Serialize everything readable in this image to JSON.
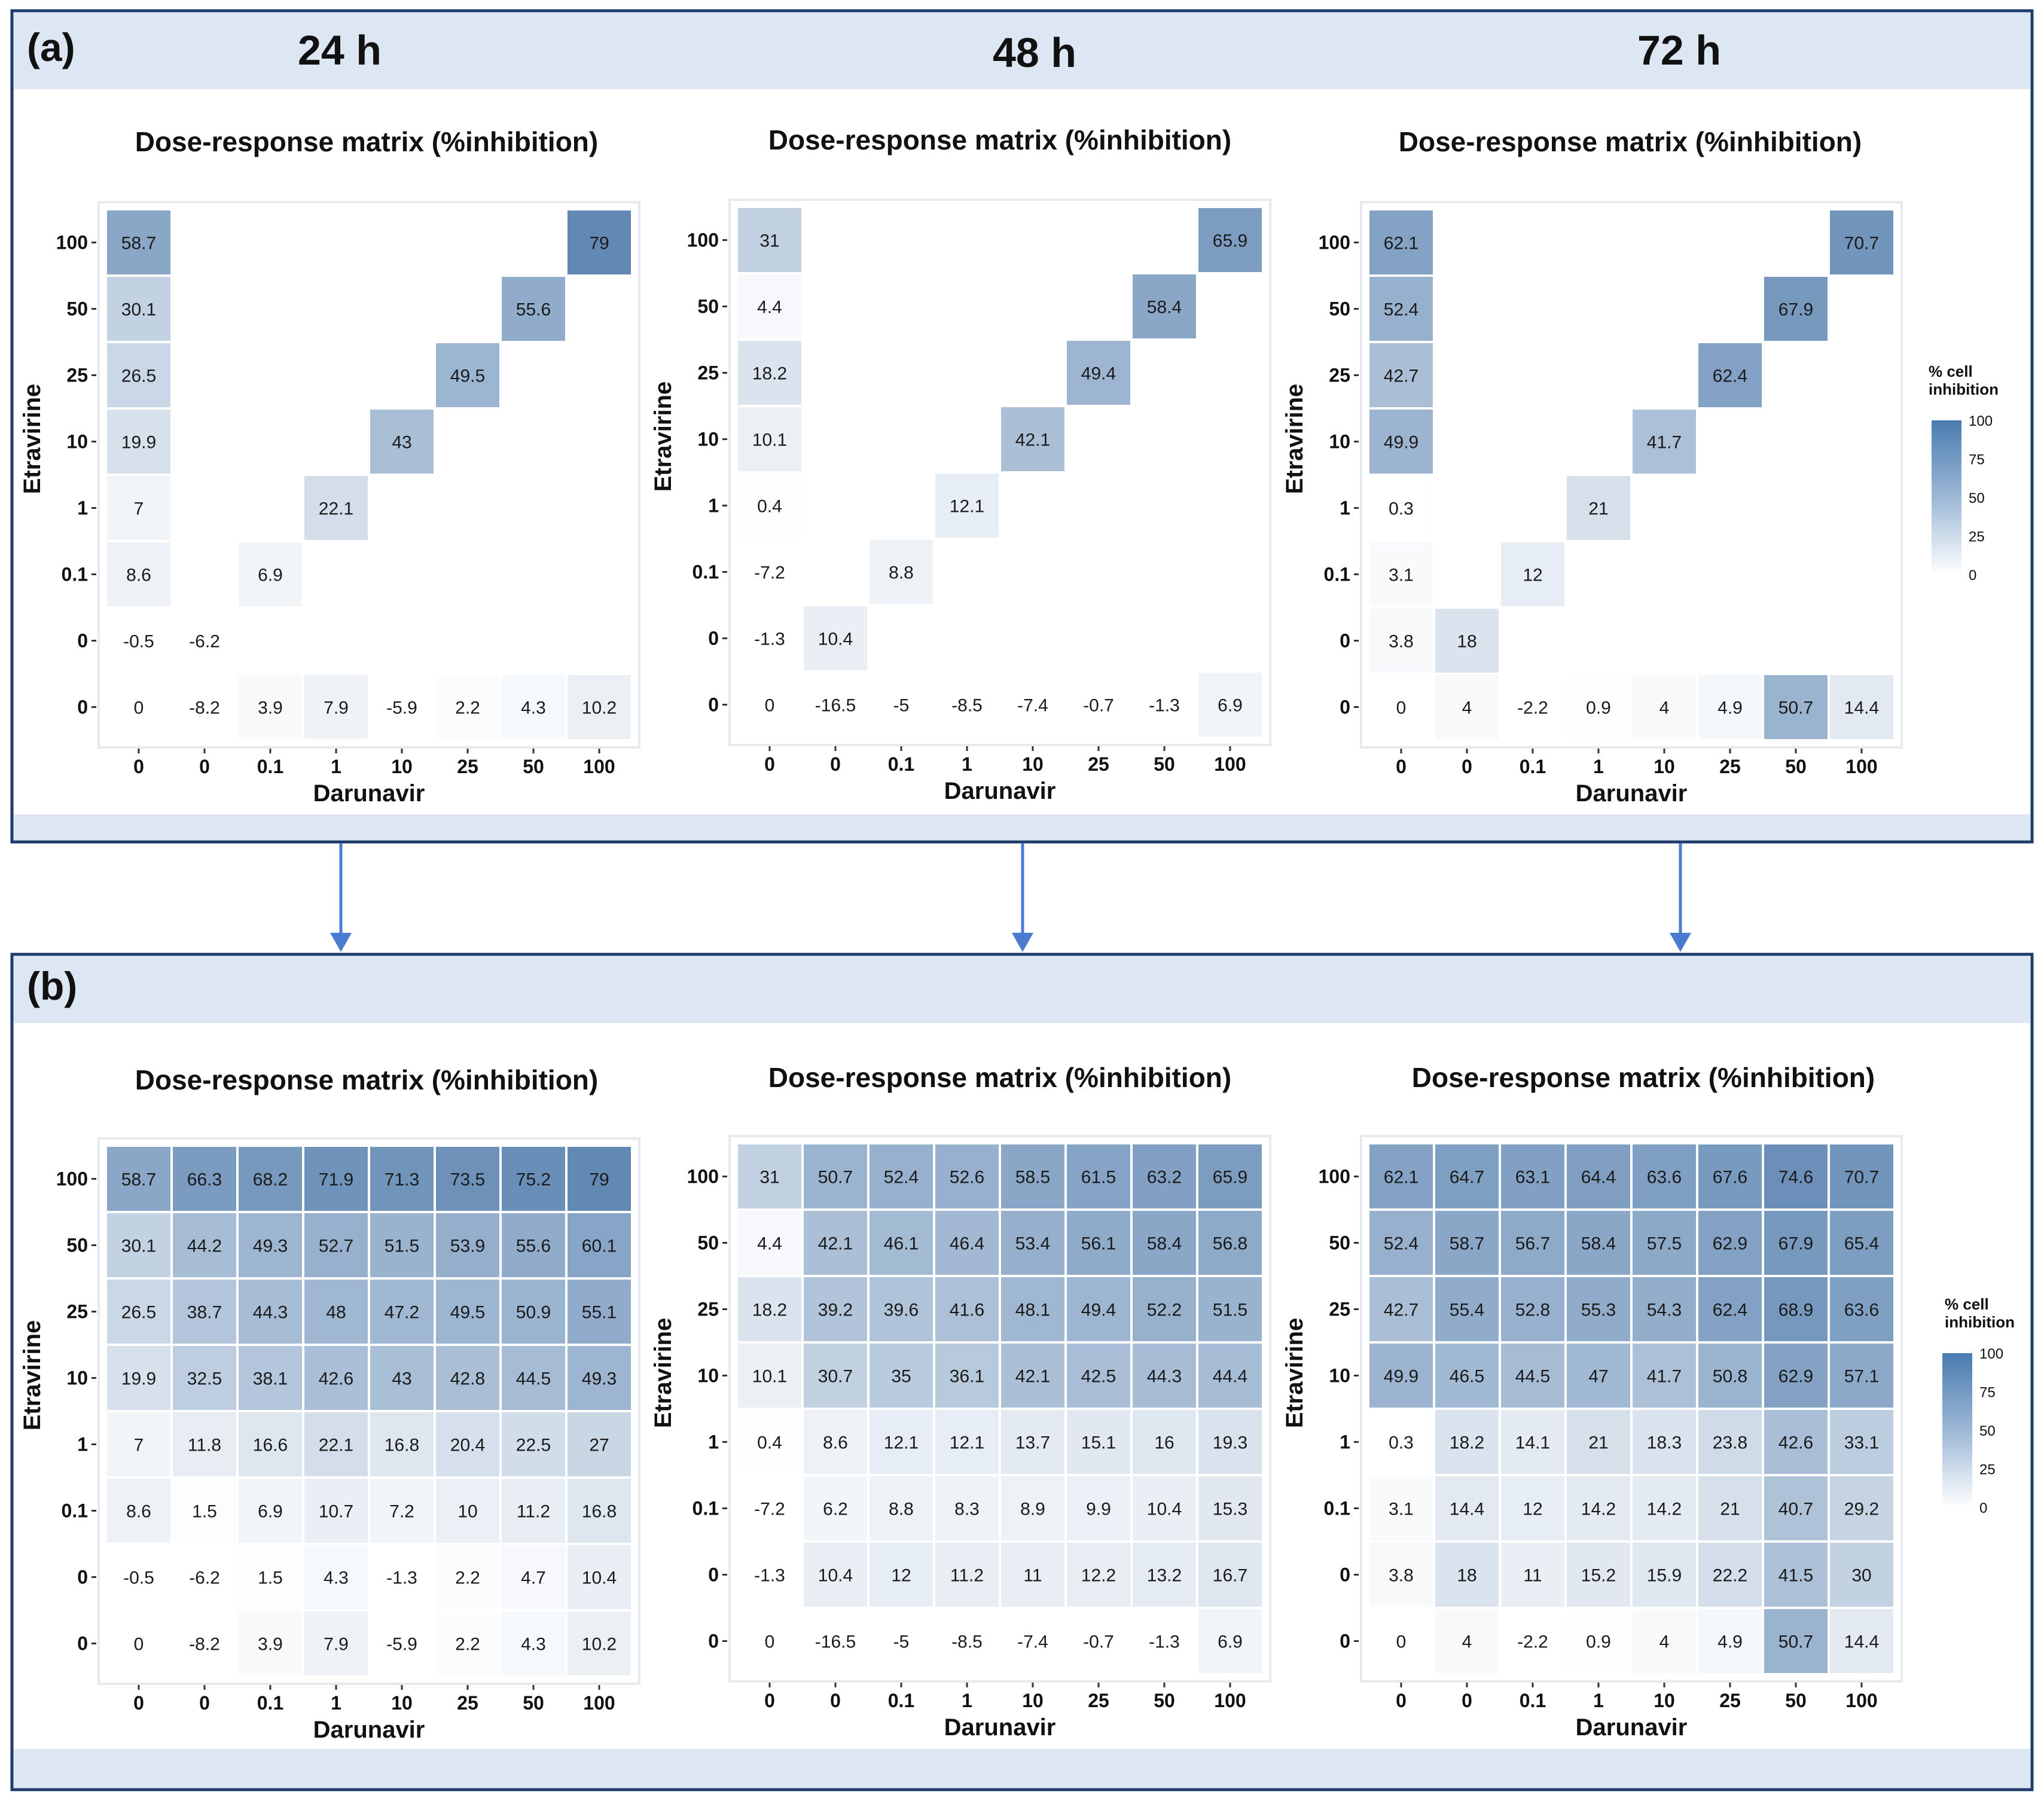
{
  "panels": {
    "a": {
      "label": "(a)"
    },
    "b": {
      "label": "(b)"
    }
  },
  "timepoints": [
    "24 h",
    "48 h",
    "72 h"
  ],
  "chart_data": [
    {
      "id": "a-24h",
      "type": "heatmap",
      "title": "Dose-response matrix (%inhibition)",
      "xlabel": "Darunavir",
      "ylabel": "Etravirine",
      "x_ticks": [
        "0",
        "0",
        "0.1",
        "1",
        "10",
        "25",
        "50",
        "100"
      ],
      "y_ticks": [
        "100",
        "50",
        "25",
        "10",
        "1",
        "0.1",
        "0",
        "0"
      ],
      "values": [
        [
          58.7,
          null,
          null,
          null,
          null,
          null,
          null,
          79
        ],
        [
          30.1,
          null,
          null,
          null,
          null,
          null,
          55.6,
          null
        ],
        [
          26.5,
          null,
          null,
          null,
          null,
          49.5,
          null,
          null
        ],
        [
          19.9,
          null,
          null,
          null,
          43,
          null,
          null,
          null
        ],
        [
          7,
          null,
          null,
          22.1,
          null,
          null,
          null,
          null
        ],
        [
          8.6,
          null,
          6.9,
          null,
          null,
          null,
          null,
          null
        ],
        [
          -0.5,
          -6.2,
          null,
          null,
          null,
          null,
          null,
          null
        ],
        [
          0,
          -8.2,
          3.9,
          7.9,
          -5.9,
          2.2,
          4.3,
          10.2
        ]
      ]
    },
    {
      "id": "a-48h",
      "type": "heatmap",
      "title": "Dose-response matrix (%inhibition)",
      "xlabel": "Darunavir",
      "ylabel": "Etravirine",
      "x_ticks": [
        "0",
        "0",
        "0.1",
        "1",
        "10",
        "25",
        "50",
        "100"
      ],
      "y_ticks": [
        "100",
        "50",
        "25",
        "10",
        "1",
        "0.1",
        "0",
        "0"
      ],
      "values": [
        [
          31,
          null,
          null,
          null,
          null,
          null,
          null,
          65.9
        ],
        [
          4.4,
          null,
          null,
          null,
          null,
          null,
          58.4,
          null
        ],
        [
          18.2,
          null,
          null,
          null,
          null,
          49.4,
          null,
          null
        ],
        [
          10.1,
          null,
          null,
          null,
          42.1,
          null,
          null,
          null
        ],
        [
          0.4,
          null,
          null,
          12.1,
          null,
          null,
          null,
          null
        ],
        [
          -7.2,
          null,
          8.8,
          null,
          null,
          null,
          null,
          null
        ],
        [
          -1.3,
          10.4,
          null,
          null,
          null,
          null,
          null,
          null
        ],
        [
          0,
          -16.5,
          -5,
          -8.5,
          -7.4,
          -0.7,
          -1.3,
          6.9
        ]
      ]
    },
    {
      "id": "a-72h",
      "type": "heatmap",
      "title": "Dose-response matrix (%inhibition)",
      "xlabel": "Darunavir",
      "ylabel": "Etravirine",
      "x_ticks": [
        "0",
        "0",
        "0.1",
        "1",
        "10",
        "25",
        "50",
        "100"
      ],
      "y_ticks": [
        "100",
        "50",
        "25",
        "10",
        "1",
        "0.1",
        "0",
        "0"
      ],
      "legend": {
        "title_line1": "% cell",
        "title_line2": "inhibition",
        "ticks": [
          "100",
          "75",
          "50",
          "25",
          "0"
        ],
        "range": [
          0,
          100
        ]
      },
      "values": [
        [
          62.1,
          null,
          null,
          null,
          null,
          null,
          null,
          70.7
        ],
        [
          52.4,
          null,
          null,
          null,
          null,
          null,
          67.9,
          null
        ],
        [
          42.7,
          null,
          null,
          null,
          null,
          62.4,
          null,
          null
        ],
        [
          49.9,
          null,
          null,
          null,
          41.7,
          null,
          null,
          null
        ],
        [
          0.3,
          null,
          null,
          21,
          null,
          null,
          null,
          null
        ],
        [
          3.1,
          null,
          12,
          null,
          null,
          null,
          null,
          null
        ],
        [
          3.8,
          18,
          null,
          null,
          null,
          null,
          null,
          null
        ],
        [
          0,
          4,
          -2.2,
          0.9,
          4,
          4.9,
          50.7,
          14.4
        ]
      ]
    },
    {
      "id": "b-24h",
      "type": "heatmap",
      "title": "Dose-response matrix (%inhibition)",
      "xlabel": "Darunavir",
      "ylabel": "Etravirine",
      "x_ticks": [
        "0",
        "0",
        "0.1",
        "1",
        "10",
        "25",
        "50",
        "100"
      ],
      "y_ticks": [
        "100",
        "50",
        "25",
        "10",
        "1",
        "0.1",
        "0",
        "0"
      ],
      "values": [
        [
          58.7,
          66.3,
          68.2,
          71.9,
          71.3,
          73.5,
          75.2,
          79
        ],
        [
          30.1,
          44.2,
          49.3,
          52.7,
          51.5,
          53.9,
          55.6,
          60.1
        ],
        [
          26.5,
          38.7,
          44.3,
          48,
          47.2,
          49.5,
          50.9,
          55.1
        ],
        [
          19.9,
          32.5,
          38.1,
          42.6,
          43,
          42.8,
          44.5,
          49.3
        ],
        [
          7,
          11.8,
          16.6,
          22.1,
          16.8,
          20.4,
          22.5,
          27
        ],
        [
          8.6,
          1.5,
          6.9,
          10.7,
          7.2,
          10,
          11.2,
          16.8
        ],
        [
          -0.5,
          -6.2,
          1.5,
          4.3,
          -1.3,
          2.2,
          4.7,
          10.4
        ],
        [
          0,
          -8.2,
          3.9,
          7.9,
          -5.9,
          2.2,
          4.3,
          10.2
        ]
      ]
    },
    {
      "id": "b-48h",
      "type": "heatmap",
      "title": "Dose-response matrix (%inhibition)",
      "xlabel": "Darunavir",
      "ylabel": "Etravirine",
      "x_ticks": [
        "0",
        "0",
        "0.1",
        "1",
        "10",
        "25",
        "50",
        "100"
      ],
      "y_ticks": [
        "100",
        "50",
        "25",
        "10",
        "1",
        "0.1",
        "0",
        "0"
      ],
      "values": [
        [
          31,
          50.7,
          52.4,
          52.6,
          58.5,
          61.5,
          63.2,
          65.9
        ],
        [
          4.4,
          42.1,
          46.1,
          46.4,
          53.4,
          56.1,
          58.4,
          56.8
        ],
        [
          18.2,
          39.2,
          39.6,
          41.6,
          48.1,
          49.4,
          52.2,
          51.5
        ],
        [
          10.1,
          30.7,
          35,
          36.1,
          42.1,
          42.5,
          44.3,
          44.4
        ],
        [
          0.4,
          8.6,
          12.1,
          12.1,
          13.7,
          15.1,
          16,
          19.3
        ],
        [
          -7.2,
          6.2,
          8.8,
          8.3,
          8.9,
          9.9,
          10.4,
          15.3
        ],
        [
          -1.3,
          10.4,
          12,
          11.2,
          11,
          12.2,
          13.2,
          16.7
        ],
        [
          0,
          -16.5,
          -5,
          -8.5,
          -7.4,
          -0.7,
          -1.3,
          6.9
        ]
      ]
    },
    {
      "id": "b-72h",
      "type": "heatmap",
      "title": "Dose-response matrix (%inhibition)",
      "xlabel": "Darunavir",
      "ylabel": "Etravirine",
      "x_ticks": [
        "0",
        "0",
        "0.1",
        "1",
        "10",
        "25",
        "50",
        "100"
      ],
      "y_ticks": [
        "100",
        "50",
        "25",
        "10",
        "1",
        "0.1",
        "0",
        "0"
      ],
      "legend": {
        "title_line1": "% cell",
        "title_line2": "inhibition",
        "ticks": [
          "100",
          "75",
          "50",
          "25",
          "0"
        ],
        "range": [
          0,
          100
        ]
      },
      "values": [
        [
          62.1,
          64.7,
          63.1,
          64.4,
          63.6,
          67.6,
          74.6,
          70.7
        ],
        [
          52.4,
          58.7,
          56.7,
          58.4,
          57.5,
          62.9,
          67.9,
          65.4
        ],
        [
          42.7,
          55.4,
          52.8,
          55.3,
          54.3,
          62.4,
          68.9,
          63.6
        ],
        [
          49.9,
          46.5,
          44.5,
          47,
          41.7,
          50.8,
          62.9,
          57.1
        ],
        [
          0.3,
          18.2,
          14.1,
          21,
          18.3,
          23.8,
          42.6,
          33.1
        ],
        [
          3.1,
          14.4,
          12,
          14.2,
          14.2,
          21,
          40.7,
          29.2
        ],
        [
          3.8,
          18,
          11,
          15.2,
          15.9,
          22.2,
          41.5,
          30
        ],
        [
          0,
          4,
          -2.2,
          0.9,
          4,
          4.9,
          50.7,
          14.4
        ]
      ]
    }
  ]
}
